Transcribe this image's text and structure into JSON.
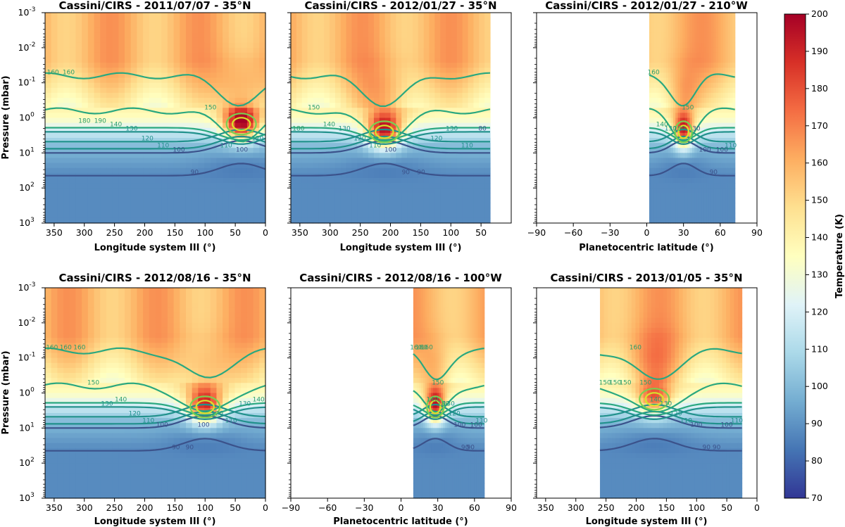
{
  "chart_data": [
    {
      "type": "heatmap",
      "title": "Cassini/CIRS - 2011/07/07 - 35°N",
      "xlabel": "Longitude system III (°)",
      "ylabel": "Pressure (mbar)",
      "xlim": [
        365,
        0
      ],
      "xticks": [
        "350",
        "300",
        "250",
        "200",
        "150",
        "100",
        "50",
        "0"
      ],
      "ylim": [
        1000,
        0.001
      ],
      "yscale": "log",
      "yticks": [
        "10^-3",
        "10^-2",
        "10^-1",
        "10^0",
        "10^1",
        "10^2",
        "10^3"
      ],
      "data_x_range": [
        365,
        0
      ],
      "hotspot": {
        "x": 40,
        "p": 1.5,
        "tmax": 195
      },
      "contour_labels": [
        "160",
        "160",
        "180",
        "190",
        "140",
        "130",
        "120",
        "110",
        "100",
        "90",
        "150",
        "110",
        "100",
        "120"
      ]
    },
    {
      "type": "heatmap",
      "title": "Cassini/CIRS - 2012/01/27 - 35°N",
      "xlabel": "Longitude system III (°)",
      "xlim": [
        365,
        0
      ],
      "xticks": [
        "350",
        "300",
        "250",
        "200",
        "150",
        "100",
        "50"
      ],
      "ylim": [
        1000,
        0.001
      ],
      "yscale": "log",
      "data_x_range": [
        365,
        35
      ],
      "hotspot": {
        "x": 210,
        "p": 2.5,
        "tmax": 188
      },
      "contour_labels": [
        "180",
        "150",
        "140",
        "130",
        "120",
        "110",
        "100",
        "90",
        "90",
        "120",
        "130",
        "110",
        "80"
      ]
    },
    {
      "type": "heatmap",
      "title": "Cassini/CIRS - 2012/01/27 - 210°W",
      "xlabel": "Planetocentric latitude (°)",
      "xlim": [
        -90,
        90
      ],
      "xticks": [
        "−90",
        "−60",
        "−30",
        "0",
        "30",
        "60",
        "90"
      ],
      "ylim": [
        1000,
        0.001
      ],
      "yscale": "log",
      "data_x_range": [
        2,
        72
      ],
      "hotspot": {
        "x": 30,
        "p": 2.5,
        "tmax": 185
      },
      "contour_labels": [
        "160",
        "140",
        "130",
        "180",
        "150",
        "30",
        "100",
        "90",
        "100",
        "110"
      ]
    },
    {
      "type": "heatmap",
      "title": "Cassini/CIRS - 2012/08/16 - 35°N",
      "xlabel": "Longitude system III (°)",
      "ylabel": "Pressure (mbar)",
      "xlim": [
        365,
        0
      ],
      "xticks": [
        "350",
        "300",
        "250",
        "200",
        "150",
        "100",
        "50",
        "0"
      ],
      "ylim": [
        1000,
        0.001
      ],
      "yscale": "log",
      "yticks": [
        "10^-3",
        "10^-2",
        "10^-1",
        "10^0",
        "10^1",
        "10^2",
        "10^3"
      ],
      "data_x_range": [
        365,
        0
      ],
      "hotspot": {
        "x": 100,
        "p": 2.5,
        "tmax": 182
      },
      "contour_labels": [
        "160",
        "160",
        "160",
        "150",
        "130",
        "140",
        "120",
        "110",
        "100",
        "90",
        "90",
        "100",
        "120",
        "110",
        "130",
        "140"
      ]
    },
    {
      "type": "heatmap",
      "title": "Cassini/CIRS - 2012/08/16 - 100°W",
      "xlabel": "Planetocentric latitude (°)",
      "xlim": [
        -90,
        90
      ],
      "xticks": [
        "−90",
        "−60",
        "−30",
        "0",
        "30",
        "60",
        "90"
      ],
      "ylim": [
        1000,
        0.001
      ],
      "yscale": "log",
      "data_x_range": [
        10,
        68
      ],
      "hotspot": {
        "x": 28,
        "p": 2.5,
        "tmax": 188
      },
      "contour_labels": [
        "160",
        "160",
        "160",
        "140",
        "150",
        "180",
        "130",
        "120",
        "100",
        "90",
        "90",
        "100",
        "110"
      ]
    },
    {
      "type": "heatmap",
      "title": "Cassini/CIRS - 2013/01/05 - 35°N",
      "xlabel": "Longitude system III (°)",
      "xlim": [
        365,
        0
      ],
      "xticks": [
        "350",
        "300",
        "250",
        "200",
        "150",
        "100",
        "50",
        "0"
      ],
      "ylim": [
        1000,
        0.001
      ],
      "yscale": "log",
      "data_x_range": [
        260,
        25
      ],
      "hotspot": {
        "x": 170,
        "p": 1.5,
        "tmax": 170
      },
      "contour_labels": [
        "150",
        "150",
        "150",
        "160",
        "150",
        "140",
        "130",
        "120",
        "110",
        "100",
        "90",
        "90",
        "100",
        "110"
      ]
    }
  ],
  "colorbar": {
    "label": "Temperature (K)",
    "min": 70,
    "max": 200,
    "ticks": [
      "200",
      "190",
      "180",
      "170",
      "160",
      "150",
      "140",
      "130",
      "120",
      "110",
      "100",
      "90",
      "80",
      "70"
    ],
    "colormap": [
      "#313695",
      "#4575b4",
      "#74add1",
      "#abd9e9",
      "#e0f3f8",
      "#ffffbf",
      "#fee090",
      "#fdae61",
      "#f46d43",
      "#d73027",
      "#a50026"
    ]
  }
}
